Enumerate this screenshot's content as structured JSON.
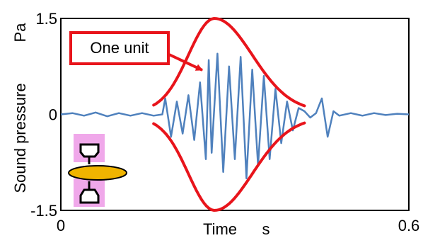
{
  "chart_data": {
    "type": "line",
    "title": "",
    "xlabel": "Time",
    "xunit": "s",
    "ylabel": "Sound pressure",
    "yunit": "Pa",
    "xlim": [
      0,
      0.6
    ],
    "ylim": [
      -1.5,
      1.5
    ],
    "x_ticks": [
      "0",
      "0.6"
    ],
    "y_ticks": [
      "1.5",
      "0",
      "-1.5"
    ],
    "grid": false,
    "series": [
      {
        "color": "#4f81bd",
        "style": "waveform",
        "x": [
          0.0,
          0.02,
          0.04,
          0.06,
          0.08,
          0.1,
          0.12,
          0.14,
          0.16,
          0.175,
          0.18,
          0.19,
          0.2,
          0.21,
          0.22,
          0.23,
          0.24,
          0.25,
          0.255,
          0.26,
          0.27,
          0.28,
          0.29,
          0.3,
          0.31,
          0.32,
          0.33,
          0.34,
          0.35,
          0.36,
          0.37,
          0.38,
          0.39,
          0.4,
          0.41,
          0.42,
          0.43,
          0.44,
          0.45,
          0.46,
          0.47,
          0.48,
          0.5,
          0.52,
          0.54,
          0.56,
          0.58,
          0.6
        ],
        "y": [
          0.0,
          0.02,
          -0.02,
          0.03,
          -0.03,
          0.02,
          -0.02,
          0.02,
          -0.02,
          0.0,
          0.25,
          -0.35,
          0.2,
          -0.3,
          0.3,
          -0.4,
          0.5,
          -0.7,
          0.85,
          -0.6,
          0.95,
          -0.9,
          0.75,
          -0.7,
          0.9,
          -1.0,
          0.7,
          -0.8,
          0.6,
          -0.7,
          0.4,
          -0.45,
          0.2,
          -0.25,
          0.1,
          0.05,
          -0.05,
          0.02,
          0.25,
          -0.35,
          0.05,
          -0.02,
          0.02,
          -0.02,
          0.02,
          -0.01,
          0.01,
          0.0
        ]
      }
    ],
    "annotations": [
      {
        "text": "One unit",
        "box_color": "#e8141b",
        "type": "callout"
      },
      {
        "type": "envelope",
        "color": "#e8141b",
        "x_range": [
          0.16,
          0.42
        ],
        "peak_x": 0.265,
        "peak": 1.45
      }
    ]
  }
}
